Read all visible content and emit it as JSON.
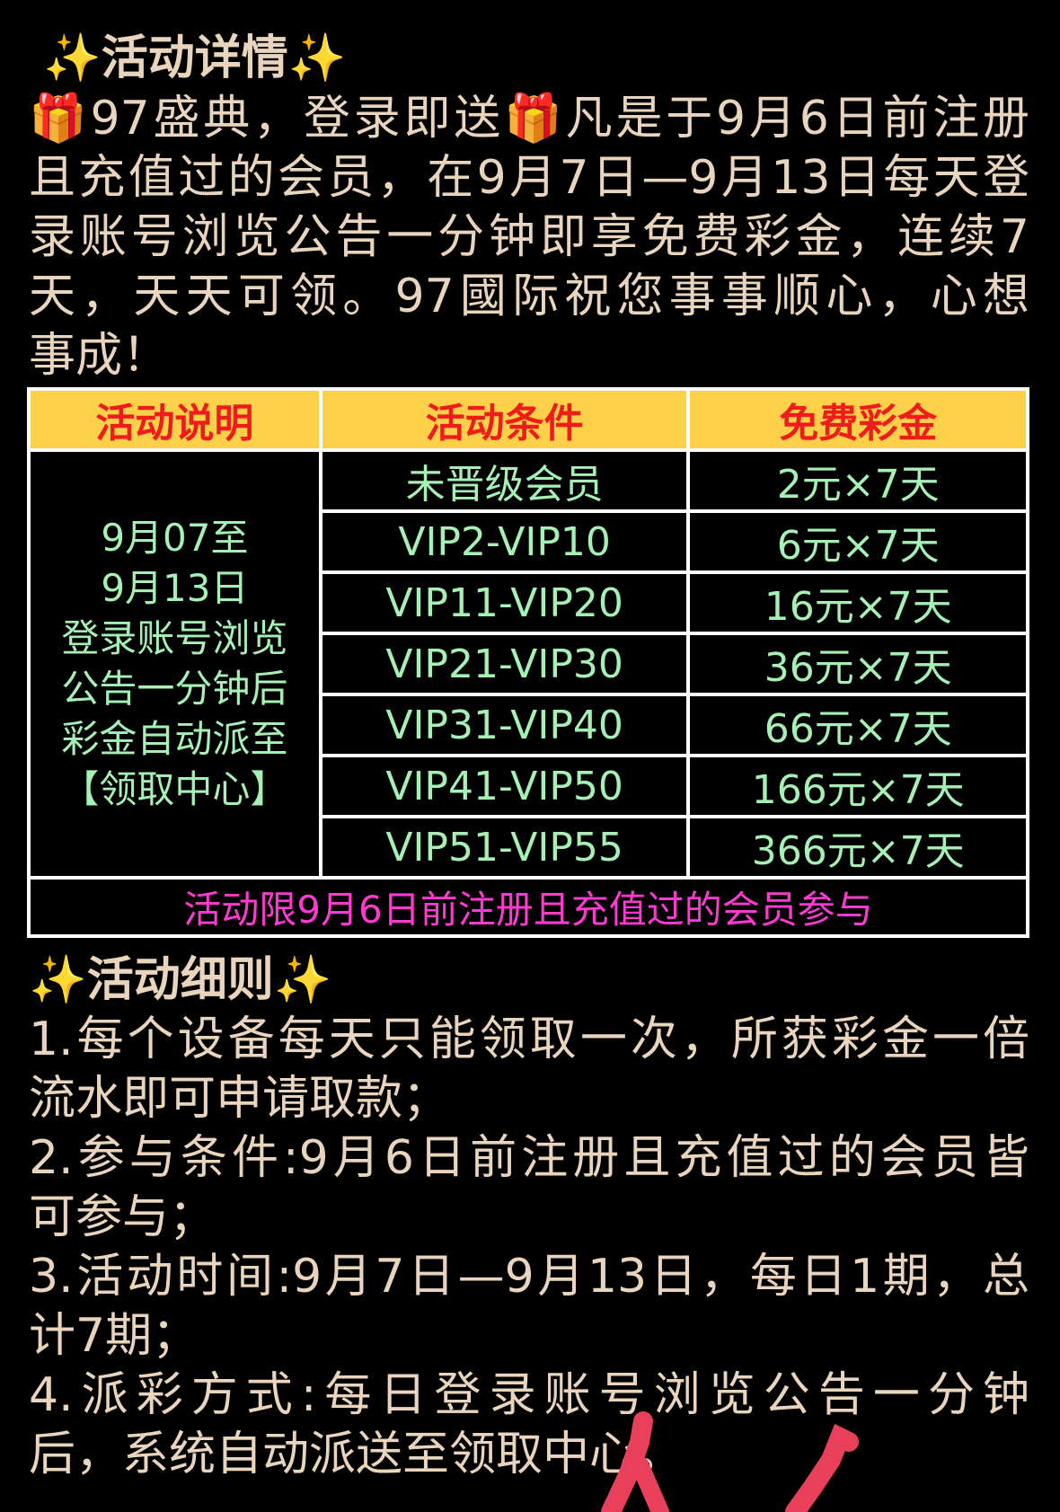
{
  "section1": {
    "title": "活动详情",
    "sparkle_icon": "✨",
    "gift_icon": "🎁",
    "lines": [
      {
        "pre_icon": true,
        "a": "97盛典，登录即送",
        "b": "凡是于9月6日前注册"
      },
      "且充值过的会员，在9月7日—9月13日每天登",
      "录账号浏览公告一分钟即享免费彩金，连续7",
      "天，天天可领。97國际祝您事事顺心，心想",
      "事成！"
    ]
  },
  "table": {
    "headers": [
      "活动说明",
      "活动条件",
      "免费彩金"
    ],
    "description_lines": [
      "9月07至",
      "9月13日",
      "登录账号浏览",
      "公告一分钟后",
      "彩金自动派至",
      "【领取中心】"
    ],
    "rows": [
      {
        "condition": "未晋级会员",
        "bonus": "2元×7天"
      },
      {
        "condition": "VIP2-VIP10",
        "bonus": "6元×7天"
      },
      {
        "condition": "VIP11-VIP20",
        "bonus": "16元×7天"
      },
      {
        "condition": "VIP21-VIP30",
        "bonus": "36元×7天"
      },
      {
        "condition": "VIP31-VIP40",
        "bonus": "66元×7天"
      },
      {
        "condition": "VIP41-VIP50",
        "bonus": "166元×7天"
      },
      {
        "condition": "VIP51-VIP55",
        "bonus": "366元×7天"
      }
    ],
    "footer": "活动限9月6日前注册且充值过的会员参与"
  },
  "section2": {
    "title": "活动细则",
    "lines": [
      "1.每个设备每天只能领取一次，所获彩金一倍",
      "流水即可申请取款；",
      "2.参与条件:9月6日前注册且充值过的会员皆",
      "可参与；",
      "3.活动时间:9月7日—9月13日，每日1期，总",
      "计7期；",
      "4.派彩方式:每日登录账号浏览公告一分钟",
      "后，系统自动派送至领取中心。"
    ]
  },
  "colors": {
    "text": "#e9d5bd",
    "header_bg": "#fdd04a",
    "header_text": "#ef1c1c",
    "cell_text": "#a6f0b6",
    "footer_text": "#ff3ad0",
    "marks": "#e8405a"
  }
}
